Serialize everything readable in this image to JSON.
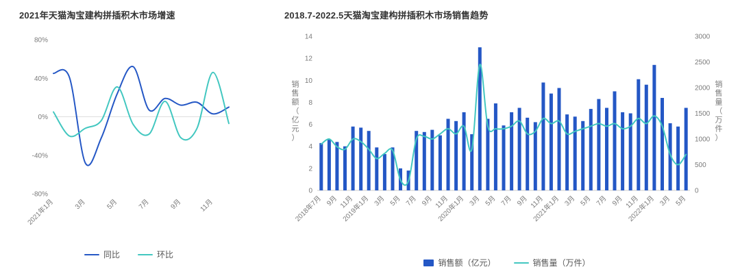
{
  "page": {
    "background": "#ffffff"
  },
  "colors": {
    "primary_blue": "#2457C5",
    "teal": "#42C7C0",
    "axis_text": "#7a7a7a",
    "title_text": "#333333",
    "zero_line": "#dddddd",
    "baseline": "#cccccc"
  },
  "chart_data": [
    {
      "type": "line",
      "title": "2021年天猫淘宝建构拼插积木市场增速",
      "categories": [
        "2021年1月",
        "2月",
        "3月",
        "4月",
        "5月",
        "6月",
        "7月",
        "8月",
        "9月",
        "10月",
        "11月",
        "12月"
      ],
      "x_tick_every": 2,
      "x_tick_labels_shown": [
        "2021年1月",
        "3月",
        "5月",
        "7月",
        "9月",
        "11月"
      ],
      "y_ticks": [
        "80%",
        "40%",
        "0%",
        "-40%",
        "-80%"
      ],
      "ylim": [
        -80,
        80
      ],
      "grid": false,
      "legend_position": "bottom",
      "series": [
        {
          "name": "同比",
          "type": "line",
          "color": "#2457C5",
          "values": [
            45,
            41,
            -48,
            -22,
            24,
            52,
            7,
            19,
            12,
            15,
            3,
            10
          ]
        },
        {
          "name": "环比",
          "type": "line",
          "color": "#42C7C0",
          "values": [
            5,
            -20,
            -12,
            -4,
            31,
            -8,
            -18,
            16,
            -22,
            -12,
            46,
            -7
          ]
        }
      ]
    },
    {
      "type": "combo",
      "title": "2018.7-2022.5天猫淘宝建构拼插积木市场销售趋势",
      "categories": [
        "2018年7月",
        "8月",
        "9月",
        "10月",
        "11月",
        "12月",
        "2019年1月",
        "2月",
        "3月",
        "4月",
        "5月",
        "6月",
        "7月",
        "8月",
        "9月",
        "10月",
        "11月",
        "12月",
        "2020年1月",
        "2月",
        "3月",
        "4月",
        "5月",
        "6月",
        "7月",
        "8月",
        "9月",
        "10月",
        "11月",
        "12月",
        "2021年1月",
        "2月",
        "3月",
        "4月",
        "5月",
        "6月",
        "7月",
        "8月",
        "9月",
        "10月",
        "11月",
        "12月",
        "2022年1月",
        "2月",
        "3月",
        "4月",
        "5月"
      ],
      "x_tick_every": 2,
      "y_axis_left": {
        "title": "销售额（亿元）",
        "min": 0,
        "max": 14,
        "tick_step": 2
      },
      "y_axis_right": {
        "title": "销售量（万件）",
        "min": 0,
        "max": 3000,
        "tick_step": 500
      },
      "grid": false,
      "legend_position": "bottom",
      "series": [
        {
          "name": "销售额（亿元）",
          "type": "bar",
          "axis": "left",
          "color": "#2457C5",
          "values": [
            4.3,
            4.6,
            4.4,
            4.0,
            5.8,
            5.7,
            5.4,
            3.9,
            3.3,
            3.9,
            2.0,
            1.8,
            5.4,
            5.3,
            5.5,
            5.0,
            6.5,
            6.3,
            7.1,
            5.1,
            13.0,
            6.5,
            7.9,
            5.9,
            7.1,
            7.5,
            6.6,
            6.2,
            9.8,
            8.8,
            9.3,
            6.9,
            6.7,
            6.3,
            7.4,
            8.3,
            7.5,
            9.0,
            7.1,
            7.0,
            10.1,
            9.6,
            11.4,
            8.4,
            6.1,
            5.8,
            7.5
          ]
        },
        {
          "name": "销售量（万件）",
          "type": "line",
          "axis": "right",
          "color": "#42C7C0",
          "values": [
            900,
            1000,
            850,
            800,
            1000,
            950,
            800,
            620,
            720,
            780,
            200,
            180,
            1000,
            1050,
            1000,
            1100,
            1200,
            1100,
            1250,
            800,
            2450,
            1250,
            1200,
            1200,
            1250,
            1350,
            1100,
            1150,
            1400,
            1300,
            1350,
            1100,
            1150,
            1200,
            1250,
            1300,
            1250,
            1300,
            1200,
            1250,
            1400,
            1300,
            1450,
            1250,
            700,
            500,
            700
          ]
        }
      ]
    }
  ]
}
